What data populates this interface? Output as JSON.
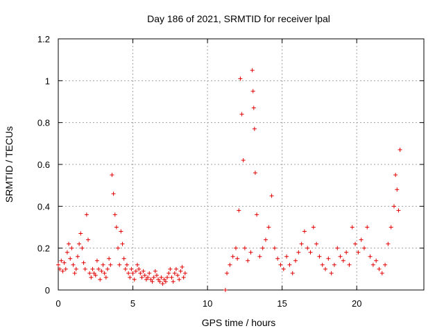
{
  "chart_data": {
    "type": "scatter",
    "title": "Day 186 of 2021, SRMTID for receiver lpal",
    "xlabel": "GPS time / hours",
    "ylabel": "SRMTID / TECUs",
    "xlim": [
      0,
      24.5
    ],
    "ylim": [
      0,
      1.2
    ],
    "xticks": [
      0,
      5,
      10,
      15,
      20
    ],
    "xtick_labels": [
      "0",
      "5",
      "10",
      "15",
      "20"
    ],
    "yticks": [
      0,
      0.2,
      0.4,
      0.6,
      0.8,
      1,
      1.2
    ],
    "ytick_labels": [
      "0",
      "0.2",
      "0.4",
      "0.6",
      "0.8",
      "1",
      "1.2"
    ],
    "grid": true,
    "marker": "+",
    "marker_color": "#e00000",
    "series": [
      {
        "name": "lpal",
        "segments": [
          {
            "description": "morning block",
            "x": [
              0.0,
              0.1,
              0.2,
              0.3,
              0.4,
              0.5,
              0.6,
              0.7,
              0.8,
              0.9,
              1.0,
              1.1,
              1.2,
              1.3,
              1.4,
              1.5,
              1.6,
              1.7,
              1.8,
              1.9,
              2.0,
              2.1,
              2.2,
              2.3,
              2.4,
              2.5,
              2.6,
              2.7,
              2.8,
              2.9,
              3.0,
              3.1,
              3.2,
              3.3,
              3.4,
              3.5,
              3.6,
              3.7,
              3.8,
              3.9,
              4.0,
              4.1,
              4.2,
              4.3,
              4.4,
              4.5,
              4.6,
              4.7,
              4.8,
              4.9,
              5.0,
              5.1,
              5.2,
              5.3,
              5.4,
              5.5,
              5.6,
              5.7,
              5.8,
              5.9,
              6.0,
              6.1,
              6.2,
              6.3,
              6.4,
              6.5,
              6.6,
              6.7,
              6.8,
              6.9,
              7.0,
              7.1,
              7.2,
              7.3,
              7.4,
              7.5,
              7.6,
              7.7,
              7.8,
              7.9,
              8.0,
              8.1,
              8.2,
              8.3,
              8.4,
              8.5
            ],
            "y": [
              0.12,
              0.1,
              0.14,
              0.09,
              0.13,
              0.1,
              0.18,
              0.22,
              0.15,
              0.2,
              0.12,
              0.08,
              0.1,
              0.16,
              0.22,
              0.27,
              0.2,
              0.13,
              0.1,
              0.36,
              0.24,
              0.08,
              0.06,
              0.1,
              0.08,
              0.07,
              0.14,
              0.1,
              0.05,
              0.09,
              0.12,
              0.08,
              0.06,
              0.1,
              0.15,
              0.12,
              0.55,
              0.46,
              0.36,
              0.3,
              0.2,
              0.12,
              0.28,
              0.22,
              0.15,
              0.1,
              0.12,
              0.08,
              0.06,
              0.1,
              0.08,
              0.05,
              0.09,
              0.12,
              0.1,
              0.08,
              0.06,
              0.09,
              0.07,
              0.05,
              0.06,
              0.08,
              0.05,
              0.04,
              0.06,
              0.09,
              0.07,
              0.05,
              0.04,
              0.06,
              0.03,
              0.05,
              0.04,
              0.06,
              0.08,
              0.1,
              0.06,
              0.04,
              0.08,
              0.1,
              0.07,
              0.05,
              0.09,
              0.11,
              0.06,
              0.08
            ]
          },
          {
            "description": "single low point",
            "x": [
              11.2
            ],
            "y": [
              0.0
            ]
          },
          {
            "description": "afternoon block",
            "x": [
              11.3,
              11.5,
              11.7,
              11.9,
              12.0,
              12.1,
              12.2,
              12.3,
              12.4,
              12.5,
              12.7,
              12.9,
              13.0,
              13.05,
              13.1,
              13.15,
              13.2,
              13.3,
              13.5,
              13.7,
              13.9,
              14.1,
              14.3,
              14.5,
              14.7,
              14.9,
              15.1,
              15.3,
              15.5,
              15.7,
              15.9,
              16.1,
              16.3,
              16.5,
              16.7,
              16.9,
              17.1,
              17.3,
              17.5,
              17.7,
              17.9,
              18.1,
              18.3,
              18.5,
              18.7,
              18.9,
              19.1,
              19.3,
              19.5,
              19.7,
              19.9,
              20.1,
              20.3,
              20.5,
              20.7,
              20.9,
              21.1,
              21.3,
              21.5,
              21.7,
              21.9,
              22.1,
              22.3,
              22.5,
              22.6,
              22.7,
              22.8,
              22.9
            ],
            "y": [
              0.08,
              0.12,
              0.16,
              0.2,
              0.15,
              0.38,
              1.01,
              0.84,
              0.62,
              0.2,
              0.14,
              0.18,
              1.05,
              0.95,
              0.87,
              0.77,
              0.56,
              0.36,
              0.16,
              0.2,
              0.24,
              0.3,
              0.45,
              0.2,
              0.15,
              0.12,
              0.1,
              0.16,
              0.12,
              0.08,
              0.14,
              0.18,
              0.22,
              0.28,
              0.2,
              0.18,
              0.3,
              0.22,
              0.16,
              0.12,
              0.1,
              0.15,
              0.08,
              0.12,
              0.2,
              0.16,
              0.14,
              0.18,
              0.12,
              0.3,
              0.22,
              0.18,
              0.24,
              0.2,
              0.3,
              0.16,
              0.12,
              0.14,
              0.1,
              0.08,
              0.12,
              0.22,
              0.3,
              0.4,
              0.55,
              0.48,
              0.38,
              0.67
            ]
          }
        ]
      }
    ]
  }
}
